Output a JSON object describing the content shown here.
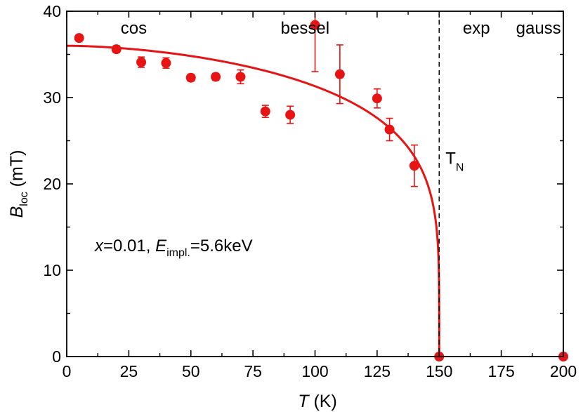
{
  "chart_data": {
    "type": "scatter",
    "xlabel": {
      "symbol": "T",
      "unit": " (K)"
    },
    "ylabel": {
      "symbol": "B",
      "subscript": "loc",
      "unit": " (mT)"
    },
    "xlim": [
      0,
      200
    ],
    "ylim": [
      0,
      40
    ],
    "x_ticks": [
      0,
      25,
      50,
      75,
      100,
      125,
      150,
      175,
      200
    ],
    "y_ticks": [
      0,
      10,
      20,
      30,
      40
    ],
    "grid": false,
    "legend": "none",
    "colors": {
      "data": "#e81313",
      "fit": "#e81313",
      "axis": "#000000"
    },
    "series": [
      {
        "marker": "circle",
        "points": [
          {
            "x": 5,
            "y": 36.9,
            "err": 0.0
          },
          {
            "x": 20,
            "y": 35.6,
            "err": 0.4
          },
          {
            "x": 30,
            "y": 34.1,
            "err": 0.6
          },
          {
            "x": 40,
            "y": 34.0,
            "err": 0.6
          },
          {
            "x": 50,
            "y": 32.3,
            "err": 0.4
          },
          {
            "x": 60,
            "y": 32.4,
            "err": 0.4
          },
          {
            "x": 70,
            "y": 32.4,
            "err": 0.8
          },
          {
            "x": 80,
            "y": 28.4,
            "err": 0.7
          },
          {
            "x": 90,
            "y": 28.0,
            "err": 1.0
          },
          {
            "x": 100,
            "y": 38.4,
            "err": 5.4
          },
          {
            "x": 110,
            "y": 32.7,
            "err": 3.4
          },
          {
            "x": 125,
            "y": 29.9,
            "err": 1.1
          },
          {
            "x": 130,
            "y": 26.3,
            "err": 1.3
          },
          {
            "x": 140,
            "y": 22.1,
            "err": 2.4
          },
          {
            "x": 150,
            "y": 0,
            "err": 0
          },
          {
            "x": 200,
            "y": 0,
            "err": 0
          }
        ]
      }
    ],
    "fit": {
      "type": "line",
      "description_formula": "B0*(1-(T/TN)^alpha)^beta",
      "B0": 36.0,
      "TN": 150,
      "alpha": 1.7,
      "beta": 0.2
    },
    "vline": {
      "x": 150,
      "style": "dashed",
      "label": "T",
      "label_sub": "N"
    },
    "region_labels": [
      {
        "text": "cos",
        "x": 27
      },
      {
        "text": "bessel",
        "x": 96
      },
      {
        "text": "exp",
        "x": 165
      },
      {
        "text": "gauss",
        "x": 190
      }
    ],
    "annotation": {
      "x_var": "x",
      "x_val": "=0.01, ",
      "e_var": "E",
      "e_sub": "impl.",
      "e_val": "=5.6keV"
    }
  }
}
